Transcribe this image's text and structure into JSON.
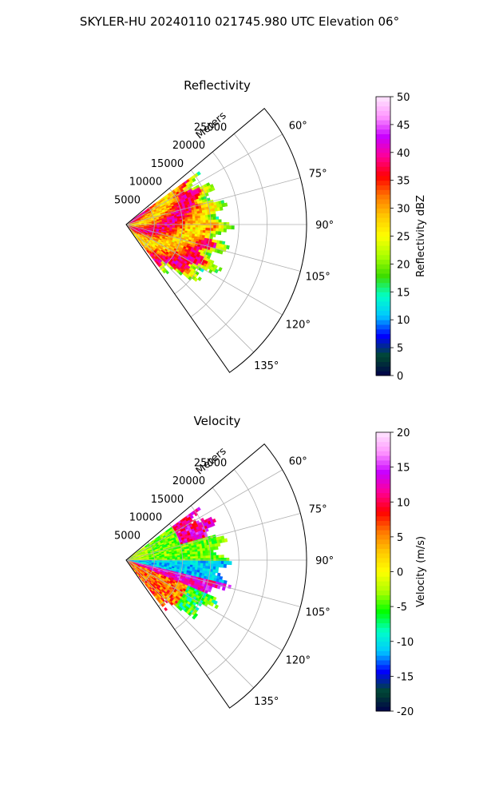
{
  "suptitle": "SKYLER-HU  20240110  021745.980 UTC Elevation 06°",
  "chart_data": [
    {
      "type": "heatmap",
      "title": "Reflectivity",
      "radial_label": "Meters",
      "r_max": 32000,
      "r_ticks": [
        5000,
        10000,
        15000,
        20000,
        25000
      ],
      "theta_range_deg": [
        50,
        145
      ],
      "theta_ticks_deg": [
        60,
        75,
        90,
        105,
        120,
        135
      ],
      "theta_tick_labels": [
        "60°",
        "75°",
        "90°",
        "105°",
        "120°",
        "135°"
      ],
      "grid": true,
      "colorbar": {
        "label": "Reflectivity dBZ",
        "min": 0,
        "max": 50,
        "ticks": [
          0,
          5,
          10,
          15,
          20,
          25,
          30,
          35,
          40,
          45,
          50
        ],
        "stops": [
          "#00004a",
          "#004a30",
          "#0000ff",
          "#00c8ff",
          "#00ffc8",
          "#3cdc00",
          "#aaff00",
          "#ffff00",
          "#ffc800",
          "#ff7800",
          "#ff0000",
          "#ff0096",
          "#c800ff",
          "#ff96ff",
          "#ffe6ff"
        ]
      }
    },
    {
      "type": "heatmap",
      "title": "Velocity",
      "radial_label": "Meters",
      "r_max": 32000,
      "r_ticks": [
        5000,
        10000,
        15000,
        20000,
        25000
      ],
      "theta_range_deg": [
        50,
        145
      ],
      "theta_ticks_deg": [
        60,
        75,
        90,
        105,
        120,
        135
      ],
      "theta_tick_labels": [
        "60°",
        "75°",
        "90°",
        "105°",
        "120°",
        "135°"
      ],
      "grid": true,
      "colorbar": {
        "label": "Velocity (m/s)",
        "min": -20,
        "max": 20,
        "ticks": [
          -20,
          -15,
          -10,
          -5,
          0,
          5,
          10,
          15,
          20
        ],
        "stops": [
          "#00004a",
          "#004a30",
          "#0000ff",
          "#00c8ff",
          "#00ffc8",
          "#00ff00",
          "#aaff00",
          "#ffff00",
          "#ffc800",
          "#ff7800",
          "#ff0000",
          "#ff0096",
          "#c800ff",
          "#ff96ff",
          "#ffe6ff"
        ]
      }
    }
  ]
}
